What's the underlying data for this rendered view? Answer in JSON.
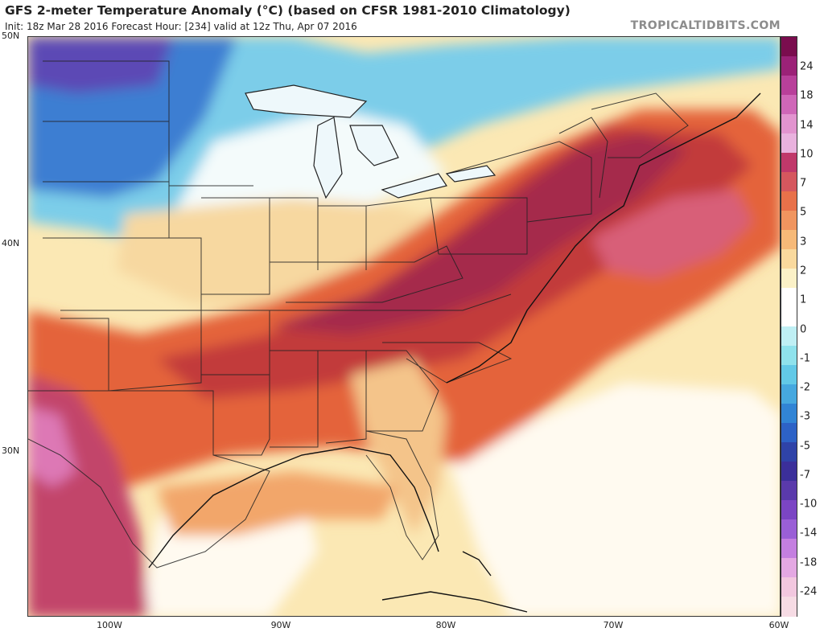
{
  "header": {
    "title": "GFS 2-meter Temperature Anomaly (°C) (based on CFSR 1981-2010 Climatology)",
    "subtitle": "Init: 18z Mar 28 2016   Forecast Hour: [234]   valid at 12z Thu, Apr 07 2016",
    "brand": "TROPICALTIDBITS.COM"
  },
  "axes": {
    "lat_labels": [
      "50N",
      "40N",
      "30N"
    ],
    "lon_labels": [
      "100W",
      "90W",
      "80W",
      "70W",
      "60W"
    ]
  },
  "colorbar": {
    "labels": [
      "24",
      "18",
      "14",
      "10",
      "7",
      "5",
      "3",
      "2",
      "1",
      "0",
      "-1",
      "-2",
      "-3",
      "-5",
      "-7",
      "-10",
      "-14",
      "-18",
      "-24"
    ],
    "colors": [
      "#7a0d4e",
      "#9b2277",
      "#b8409a",
      "#cf67b8",
      "#e294cf",
      "#e9b2de",
      "#c0386a",
      "#d5575e",
      "#e8714a",
      "#f0955f",
      "#f6b978",
      "#f9d99d",
      "#fbf1c7",
      "#ffffff",
      "#ffffff",
      "#bfeff4",
      "#8fe2ec",
      "#62c9e7",
      "#46a8df",
      "#3184d5",
      "#2d62c6",
      "#2f43a8",
      "#3b2f9a",
      "#5a3aab",
      "#7b45c4",
      "#9a5fd6",
      "#c47fe0",
      "#e4a8e3",
      "#f2c7df",
      "#f6dbe4"
    ]
  },
  "map": {
    "colors": {
      "hot": "#8c1f4b",
      "red": "#c23a3a",
      "orange": "#e0653a",
      "salmon": "#ee9a66",
      "tan": "#f6cf92",
      "cream": "#fbf0c8",
      "white": "#ffffff",
      "cyan": "#aeeaf2",
      "lightblue": "#7ccde9",
      "blue": "#4a93d9",
      "darkblue": "#3066c4",
      "purple": "#6a4bb8",
      "pink": "#d96aa3"
    }
  }
}
